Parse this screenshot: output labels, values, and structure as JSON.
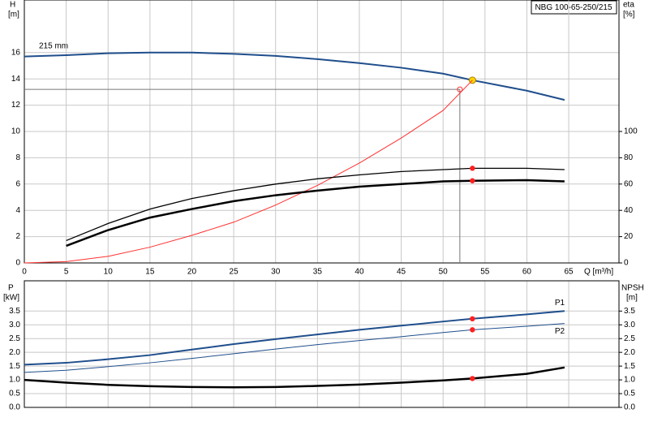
{
  "chart_data": [
    {
      "type": "line",
      "title": "NBG 100-65-250/215",
      "ylabel": "H",
      "yunit": "[m]",
      "y2label": "eta",
      "y2unit": "[%]",
      "xlabel": "Q [m³/h]",
      "annotation": "215 mm",
      "x": [
        0,
        5,
        10,
        15,
        20,
        25,
        30,
        35,
        40,
        45,
        50,
        53.5,
        60,
        64.5
      ],
      "xlim": [
        0,
        71
      ],
      "xticks": [
        0,
        5,
        10,
        15,
        20,
        25,
        30,
        35,
        40,
        45,
        50,
        55,
        60,
        65
      ],
      "ylim": [
        0,
        20
      ],
      "yticks": [
        0,
        2,
        4,
        6,
        8,
        10,
        12,
        14,
        16
      ],
      "y2lim": [
        0,
        200
      ],
      "y2ticks": [
        0,
        20,
        40,
        60,
        80,
        100
      ],
      "grid": true,
      "duty_point": {
        "x": 53.5,
        "color": "#ffd400"
      },
      "reference_point": {
        "x": 52,
        "y": 13.2
      },
      "series": [
        {
          "color": "#1f4e8c",
          "width": 2,
          "axis": "y",
          "values": [
            15.7,
            15.8,
            15.95,
            16.0,
            16.0,
            15.9,
            15.75,
            15.5,
            15.2,
            14.85,
            14.4,
            13.9,
            13.1,
            12.4
          ]
        },
        {
          "color": "#ff3030",
          "width": 1,
          "axis": "y",
          "values": [
            0,
            0.1,
            0.5,
            1.2,
            2.1,
            3.1,
            4.4,
            5.9,
            7.6,
            9.5,
            11.6,
            13.9,
            null,
            null
          ]
        },
        {
          "color": "#000000",
          "width": 1.3,
          "axis": "y2",
          "marker": true,
          "values": [
            null,
            17,
            30,
            41,
            49,
            55,
            60,
            64,
            67,
            69.5,
            71,
            72,
            72,
            71
          ]
        },
        {
          "color": "#000000",
          "width": 2.5,
          "axis": "y2",
          "marker": true,
          "values": [
            null,
            13,
            25,
            34.5,
            41,
            47,
            51.5,
            55,
            58,
            60,
            62,
            62.5,
            63,
            62
          ]
        }
      ]
    },
    {
      "type": "line",
      "ylabel": "P",
      "yunit": "[kW]",
      "y2label": "NPSH",
      "y2unit": "[m]",
      "x": [
        0,
        5,
        10,
        15,
        20,
        25,
        30,
        35,
        40,
        45,
        50,
        53.5,
        60,
        64.5
      ],
      "xlim": [
        0,
        71
      ],
      "ylim": [
        0,
        4.6
      ],
      "yticks": [
        {
          "value": 0,
          "label": "0.0"
        },
        {
          "value": 0.5,
          "label": "0.5"
        },
        {
          "value": 1,
          "label": "1.0"
        },
        {
          "value": 1.5,
          "label": "1.5"
        },
        {
          "value": 2,
          "label": "2.0"
        },
        {
          "value": 2.5,
          "label": "2.5"
        },
        {
          "value": 3,
          "label": "3.0"
        },
        {
          "value": 3.5,
          "label": "3.5"
        }
      ],
      "y2lim": [
        0,
        4.6
      ],
      "y2ticks": [
        {
          "value": 0,
          "label": "0.0"
        },
        {
          "value": 0.5,
          "label": "0.5"
        },
        {
          "value": 1,
          "label": "1.0"
        },
        {
          "value": 1.5,
          "label": "1.5"
        },
        {
          "value": 2,
          "label": "2.0"
        },
        {
          "value": 2.5,
          "label": "2.5"
        },
        {
          "value": 3,
          "label": "3.0"
        },
        {
          "value": 3.5,
          "label": "3.5"
        }
      ],
      "grid": true,
      "duty_point": {
        "x": 53.5,
        "color": "#ff2020"
      },
      "series": [
        {
          "name": "P1",
          "color": "#1f4e8c",
          "width": 2,
          "axis": "y",
          "marker": true,
          "values": [
            1.55,
            1.62,
            1.75,
            1.9,
            2.1,
            2.3,
            2.48,
            2.65,
            2.82,
            2.97,
            3.12,
            3.22,
            3.38,
            3.5
          ]
        },
        {
          "name": "P2",
          "color": "#1f4e8c",
          "width": 1,
          "axis": "y",
          "marker": true,
          "values": [
            1.27,
            1.35,
            1.48,
            1.62,
            1.78,
            1.95,
            2.12,
            2.28,
            2.43,
            2.57,
            2.72,
            2.82,
            2.95,
            3.05
          ]
        },
        {
          "color": "#000000",
          "width": 2.5,
          "axis": "y2",
          "marker": true,
          "values": [
            1.0,
            0.9,
            0.82,
            0.77,
            0.74,
            0.73,
            0.74,
            0.78,
            0.83,
            0.9,
            0.98,
            1.05,
            1.22,
            1.45
          ]
        }
      ]
    }
  ]
}
